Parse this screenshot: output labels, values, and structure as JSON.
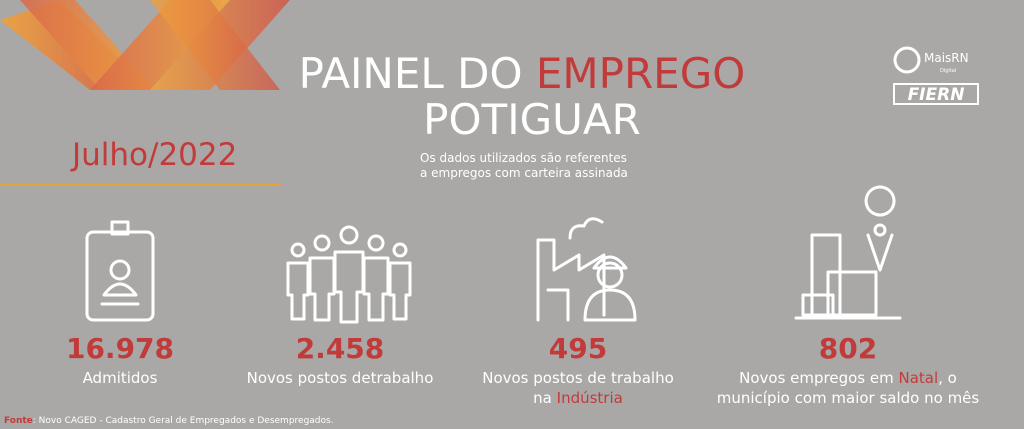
{
  "header": {
    "title_line1": [
      "PAINEL DO ",
      "EMPREGO"
    ],
    "title_line2": "POTIGUAR",
    "period": "Julho/2022",
    "note": [
      "Os dados utilizados são referentes",
      "a empregos com carteira assinada"
    ]
  },
  "logos": {
    "mais_rn": "MaisRN",
    "mais_rn_sub": "Digital",
    "fiern": "FIERN"
  },
  "stats": [
    {
      "value": "16.978",
      "label": [
        "Admitidos"
      ]
    },
    {
      "value": "2.458",
      "label": [
        "Novos postos de",
        "trabalho"
      ]
    },
    {
      "value": "495",
      "label": [
        "Novos postos de trabalho"
      ],
      "label2": [
        "na ",
        "Indústria"
      ]
    },
    {
      "value": "802",
      "label": [
        "Novos empregos em ",
        "Natal",
        ", o"
      ],
      "label2": [
        "município com maior saldo no mês"
      ]
    }
  ],
  "footer": {
    "source_key": "Fonte",
    "source_text": ": Novo CAGED - Cadastro Geral de Empregados e Desempregados."
  }
}
